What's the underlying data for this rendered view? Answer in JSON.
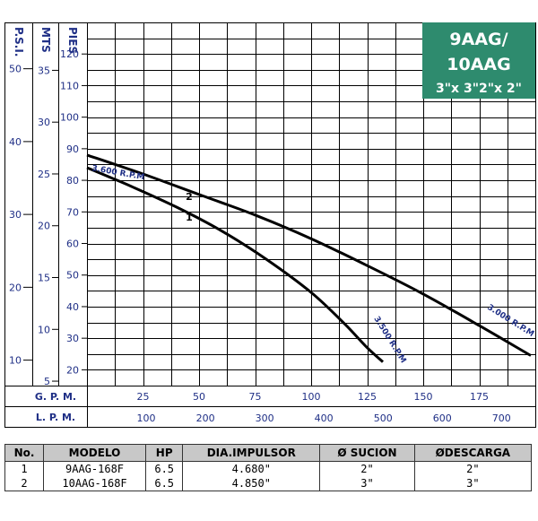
{
  "chart_data": {
    "type": "line",
    "title": [
      "9AAG/",
      "10AAG",
      "3\"x 3\"2\"x 2\""
    ],
    "y_axes": [
      {
        "label": "P.S.I.",
        "ticks": [
          10,
          20,
          30,
          40,
          50
        ]
      },
      {
        "label": "MTS",
        "ticks": [
          5,
          10,
          15,
          20,
          25,
          30,
          35
        ]
      },
      {
        "label": "PIES",
        "ticks": [
          20,
          30,
          40,
          50,
          60,
          70,
          80,
          90,
          100,
          110,
          120
        ]
      }
    ],
    "ylim": [
      15,
      130
    ],
    "x_axes": [
      {
        "label": "G. P. M.",
        "ticks": [
          25,
          50,
          75,
          100,
          125,
          150,
          175
        ]
      },
      {
        "label": "L. P. M.",
        "ticks": [
          100,
          200,
          300,
          400,
          500,
          600,
          700
        ]
      }
    ],
    "xlim": [
      0,
      200
    ],
    "grid": true,
    "series": [
      {
        "name": "1",
        "x": [
          0,
          20,
          40,
          60,
          80,
          100,
          115,
          125,
          132
        ],
        "y": [
          84,
          78,
          71.5,
          64,
          55,
          44.5,
          34.5,
          27,
          22.5
        ]
      },
      {
        "name": "2",
        "x": [
          0,
          25,
          50,
          75,
          100,
          125,
          150,
          175,
          198
        ],
        "y": [
          88,
          82,
          75.5,
          69,
          61.5,
          53,
          44,
          34,
          24.5
        ]
      }
    ],
    "annotations": [
      "3.600 R.P.M",
      "3.500 R.P.M",
      "3.000 R.P.M"
    ]
  },
  "table": {
    "headers": [
      "No.",
      "MODELO",
      "HP",
      "DIA.IMPULSOR",
      "Ø SUCION",
      "ØDESCARGA"
    ],
    "rows": [
      [
        "1",
        "9AAG-168F",
        "6.5",
        "4.680\"",
        "2\"",
        "2\""
      ],
      [
        "2",
        "10AAG-168F",
        "6.5",
        "4.850\"",
        "3\"",
        "3\""
      ]
    ]
  }
}
